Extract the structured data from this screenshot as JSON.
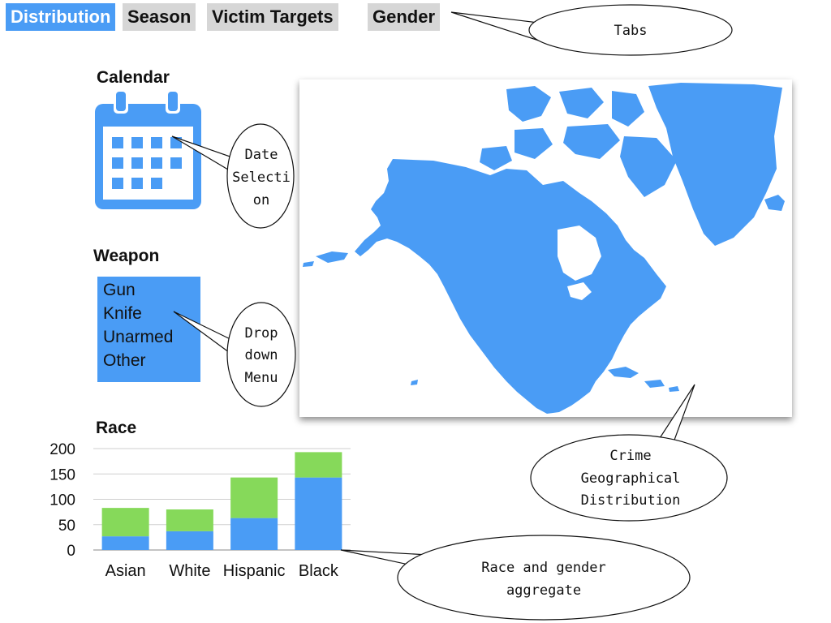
{
  "tabs": [
    {
      "label": "Distribution",
      "active": true
    },
    {
      "label": "Season",
      "active": false
    },
    {
      "label": "Victim Targets",
      "active": false
    },
    {
      "label": "Gender",
      "active": false
    }
  ],
  "calendar": {
    "heading": "Calendar",
    "icon": "calendar-icon"
  },
  "weapon": {
    "heading": "Weapon",
    "options": [
      "Gun",
      "Knife",
      "Unarmed",
      "Other"
    ]
  },
  "race": {
    "heading": "Race"
  },
  "callouts": {
    "tabs": [
      "Tabs"
    ],
    "date_selection": [
      "Date",
      "Selecti",
      "on"
    ],
    "dropdown": [
      "Drop",
      "down",
      "Menu"
    ],
    "crime_map": [
      "Crime",
      "Geographical",
      "Distribution"
    ],
    "race_gender": [
      "Race and gender",
      "aggregate"
    ]
  },
  "colors": {
    "accent": "#4a9cf5",
    "green": "#86d95a",
    "tab_inactive": "#d6d6d6"
  },
  "chart_data": {
    "type": "bar",
    "stacked": true,
    "categories": [
      "Asian",
      "White",
      "Hispanic",
      "Black"
    ],
    "series": [
      {
        "values": [
          27,
          37,
          63,
          143
        ]
      },
      {
        "values": [
          56,
          43,
          80,
          50
        ]
      }
    ],
    "yticks": [
      "0",
      "50",
      "100",
      "150",
      "200"
    ],
    "ylim": [
      0,
      200
    ],
    "grid": true
  }
}
